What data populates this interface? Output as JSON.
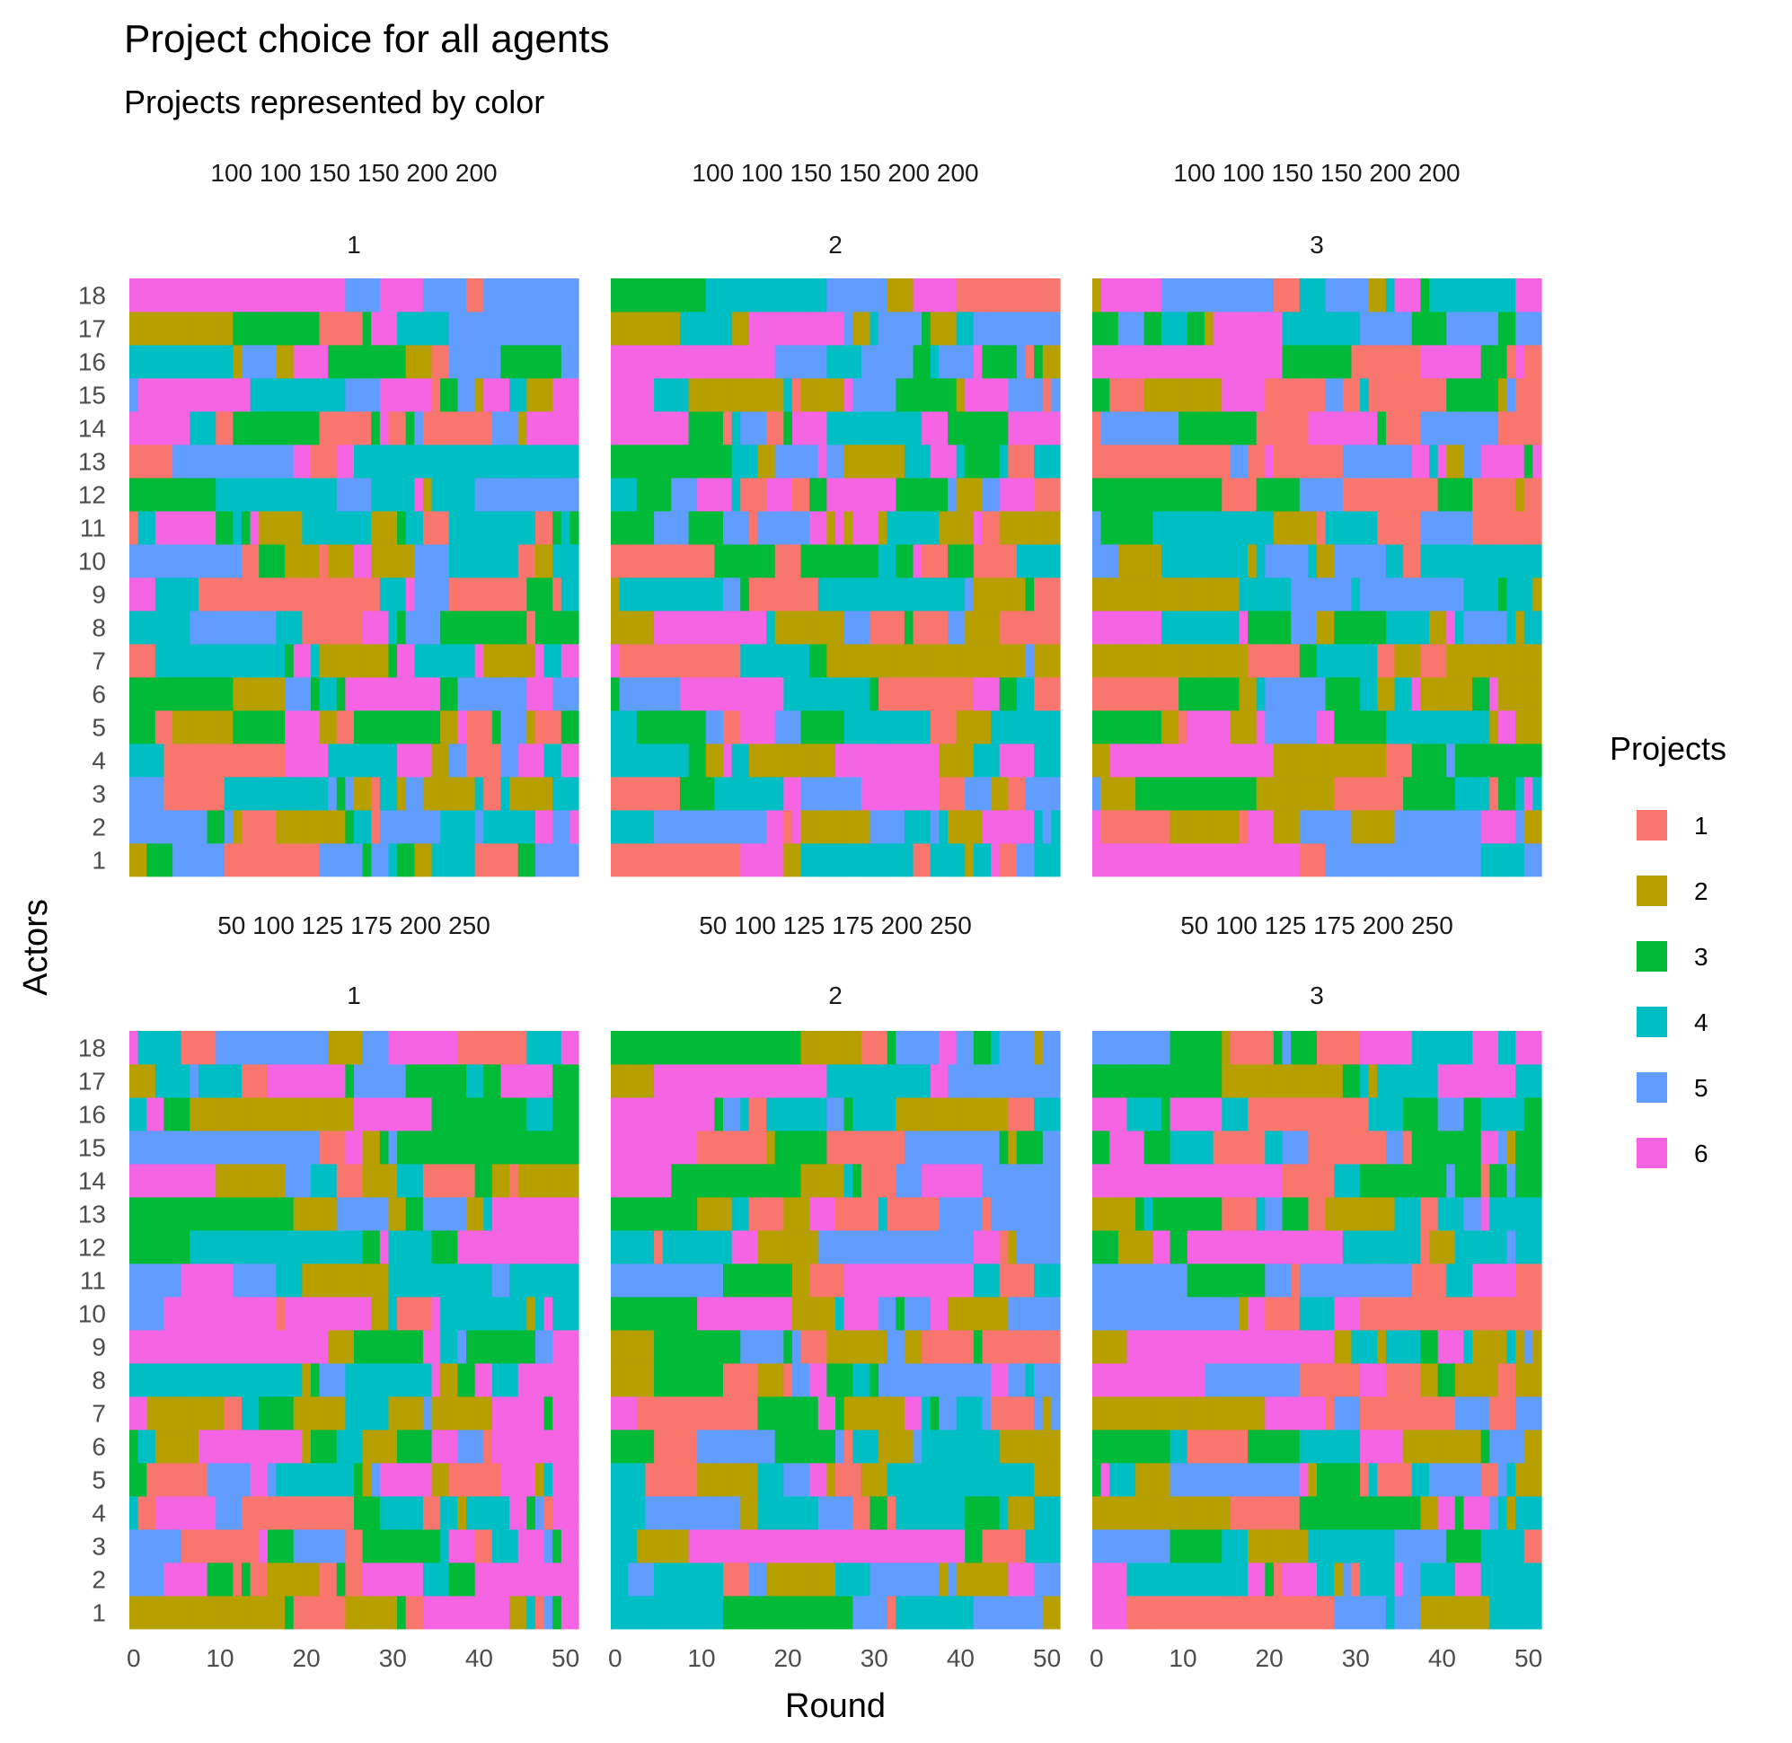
{
  "chart_data": {
    "type": "heatmap",
    "title": "Project choice for all agents",
    "subtitle": "Projects represented by color",
    "xlabel": "Round",
    "ylabel": "Actors",
    "x_ticks": [
      "0",
      "10",
      "20",
      "30",
      "40",
      "50"
    ],
    "xlim": [
      0,
      52
    ],
    "y_categories": [
      "1",
      "2",
      "3",
      "4",
      "5",
      "6",
      "7",
      "8",
      "9",
      "10",
      "11",
      "12",
      "13",
      "14",
      "15",
      "16",
      "17",
      "18"
    ],
    "grid": "off",
    "legend": {
      "title": "Projects",
      "position": "right",
      "items": [
        {
          "label": "1",
          "color": "#F8766D"
        },
        {
          "label": "2",
          "color": "#B79F00"
        },
        {
          "label": "3",
          "color": "#00BA38"
        },
        {
          "label": "4",
          "color": "#00BFC4"
        },
        {
          "label": "5",
          "color": "#619CFF"
        },
        {
          "label": "6",
          "color": "#F564E3"
        }
      ]
    },
    "facet_rows": [
      {
        "strip": "100 100 150 150 200 200"
      },
      {
        "strip": "50 100 125 175 200 250"
      }
    ],
    "facet_cols": [
      {
        "strip": "1"
      },
      {
        "strip": "2"
      },
      {
        "strip": "3"
      }
    ],
    "panels": [
      {
        "row": 0,
        "col": 0,
        "early": {
          "1": 2,
          "2": 5,
          "3": 5,
          "4": 4,
          "5": 3,
          "6": 3,
          "7": 1,
          "8": 4,
          "9": 6,
          "10": 5,
          "11": 1,
          "12": 3,
          "13": 1,
          "14": 6,
          "15": 5,
          "16": 4,
          "17": 2,
          "18": 6
        },
        "late": [
          5,
          5,
          4,
          6,
          3,
          5,
          6,
          3,
          4,
          4,
          3,
          5,
          4,
          6,
          6,
          5,
          5,
          5
        ]
      },
      {
        "row": 0,
        "col": 1,
        "early": {
          "1": 1,
          "2": 4,
          "3": 1,
          "4": 4,
          "5": 4,
          "6": 3,
          "7": 6,
          "8": 2,
          "9": 2,
          "10": 1,
          "11": 3,
          "12": 4,
          "13": 3,
          "14": 6,
          "15": 6,
          "16": 6,
          "17": 2,
          "18": 3
        },
        "late": [
          4,
          4,
          5,
          4,
          4,
          1,
          2,
          1,
          1,
          4,
          2,
          1,
          4,
          6,
          5,
          3,
          5,
          1
        ]
      },
      {
        "row": 0,
        "col": 2,
        "early": {
          "1": 6,
          "2": 6,
          "3": 5,
          "4": 2,
          "5": 3,
          "6": 1,
          "7": 2,
          "8": 6,
          "9": 2,
          "10": 5,
          "11": 5,
          "12": 3,
          "13": 1,
          "14": 1,
          "15": 3,
          "16": 6,
          "17": 3,
          "18": 2
        },
        "late": [
          5,
          2,
          4,
          3,
          2,
          2,
          2,
          4,
          4,
          4,
          1,
          1,
          6,
          1,
          1,
          1,
          5,
          6
        ]
      },
      {
        "row": 1,
        "col": 0,
        "early": {
          "1": 2,
          "2": 5,
          "3": 5,
          "4": 4,
          "5": 3,
          "6": 3,
          "7": 6,
          "8": 4,
          "9": 6,
          "10": 5,
          "11": 5,
          "12": 3,
          "13": 3,
          "14": 6,
          "15": 5,
          "16": 4,
          "17": 2,
          "18": 6
        },
        "late": [
          6,
          6,
          6,
          6,
          6,
          6,
          6,
          6,
          6,
          4,
          4,
          6,
          6,
          2,
          3,
          3,
          3,
          6
        ]
      },
      {
        "row": 1,
        "col": 1,
        "early": {
          "1": 4,
          "2": 4,
          "3": 4,
          "4": 4,
          "5": 4,
          "6": 3,
          "7": 6,
          "8": 2,
          "9": 2,
          "10": 3,
          "11": 5,
          "12": 4,
          "13": 3,
          "14": 6,
          "15": 6,
          "16": 6,
          "17": 2,
          "18": 3
        },
        "late": [
          5,
          5,
          4,
          4,
          2,
          2,
          5,
          5,
          1,
          5,
          4,
          5,
          5,
          5,
          5,
          4,
          5,
          5
        ]
      },
      {
        "row": 1,
        "col": 2,
        "early": {
          "1": 6,
          "2": 6,
          "3": 5,
          "4": 2,
          "5": 3,
          "6": 3,
          "7": 2,
          "8": 6,
          "9": 2,
          "10": 5,
          "11": 5,
          "12": 3,
          "13": 2,
          "14": 6,
          "15": 3,
          "16": 6,
          "17": 3,
          "18": 5
        },
        "late": [
          4,
          4,
          4,
          4,
          4,
          2,
          5,
          2,
          2,
          1,
          1,
          4,
          4,
          3,
          3,
          3,
          4,
          6
        ]
      }
    ]
  }
}
